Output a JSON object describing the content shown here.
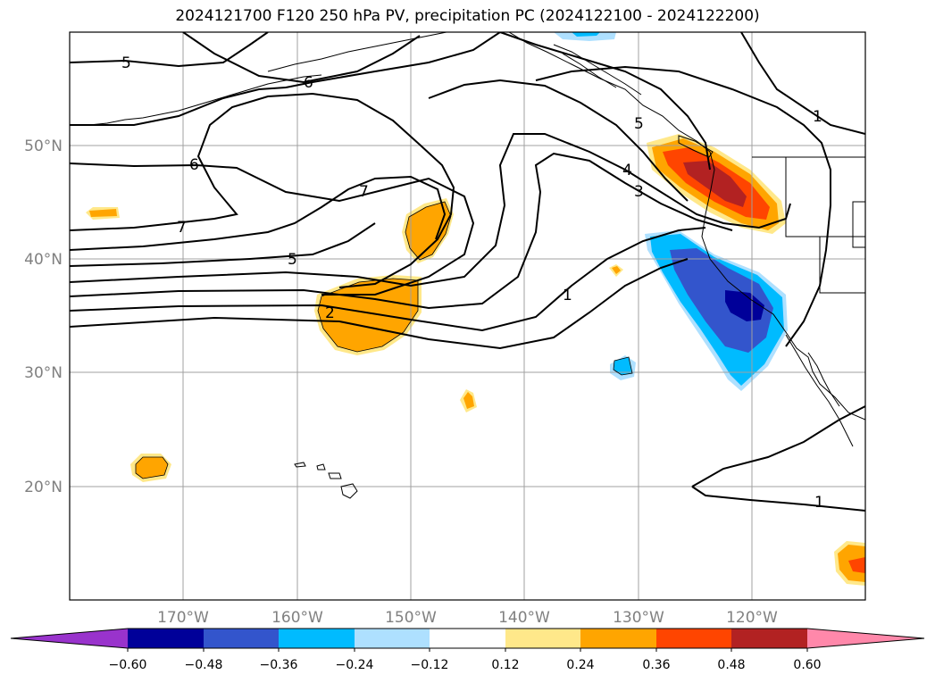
{
  "title": "2024121700 F120 250 hPa PV, precipitation PC (2024122100 - 2024122200)",
  "map": {
    "lon_labels": [
      "170°W",
      "160°W",
      "150°W",
      "140°W",
      "130°W",
      "120°W"
    ],
    "lat_labels": [
      "50°N",
      "40°N",
      "30°N",
      "20°N"
    ],
    "lon_range": [
      -180,
      -110
    ],
    "lat_range": [
      10,
      60
    ],
    "gridlines": true
  },
  "pv_contour_labels": [
    "5",
    "6",
    "6",
    "7",
    "7",
    "5",
    "2",
    "1",
    "1",
    "1",
    "3",
    "4",
    "5"
  ],
  "colorbar": {
    "ticks": [
      "−0.60",
      "−0.48",
      "−0.36",
      "−0.24",
      "−0.12",
      "0.12",
      "0.24",
      "0.36",
      "0.48",
      "0.60"
    ],
    "colors": [
      "#9933cc",
      "#000099",
      "#3355cc",
      "#00bbff",
      "#aee0ff",
      "#ffffff",
      "#ffe88a",
      "#ffa500",
      "#ff4500",
      "#b22222",
      "#ff88aa"
    ],
    "extend": "both"
  },
  "colors": {
    "contour": "#000000",
    "grid": "#a0a0a0",
    "coast": "#000000"
  }
}
